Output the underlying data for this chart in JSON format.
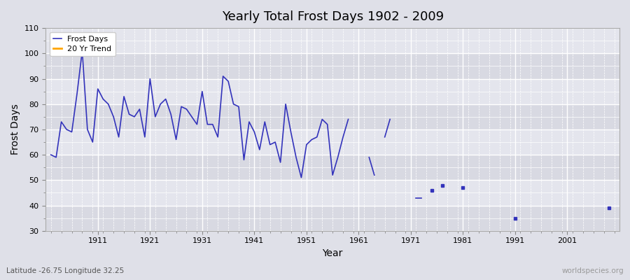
{
  "title": "Yearly Total Frost Days 1902 - 2009",
  "xlabel": "Year",
  "ylabel": "Frost Days",
  "subtitle": "Latitude -26.75 Longitude 32.25",
  "watermark": "worldspecies.org",
  "line_color": "#3333bb",
  "trend_color": "#FFA500",
  "bg_color": "#dfe0e8",
  "ylim": [
    30,
    110
  ],
  "yticks": [
    30,
    40,
    50,
    60,
    70,
    80,
    90,
    100,
    110
  ],
  "xlim": [
    1901,
    2011
  ],
  "xticks": [
    1911,
    1921,
    1931,
    1941,
    1951,
    1961,
    1971,
    1981,
    1991,
    2001
  ],
  "legend_labels": [
    "Frost Days",
    "20 Yr Trend"
  ],
  "years": [
    1902,
    1903,
    1904,
    1905,
    1906,
    1907,
    1908,
    1909,
    1910,
    1911,
    1912,
    1913,
    1914,
    1915,
    1916,
    1917,
    1918,
    1919,
    1920,
    1921,
    1922,
    1923,
    1924,
    1925,
    1926,
    1927,
    1928,
    1929,
    1930,
    1931,
    1932,
    1933,
    1934,
    1935,
    1936,
    1937,
    1938,
    1939,
    1940,
    1941,
    1942,
    1943,
    1944,
    1945,
    1946,
    1947,
    1948,
    1949,
    1950,
    1951,
    1952,
    1953,
    1954,
    1955,
    1956,
    1957,
    1958,
    1959,
    1963,
    1964,
    1966,
    1967,
    1972,
    1973,
    1975,
    1977,
    1981,
    1991,
    2009
  ],
  "frost_days": [
    60,
    59,
    73,
    70,
    69,
    84,
    101,
    70,
    65,
    86,
    82,
    80,
    75,
    67,
    83,
    76,
    75,
    78,
    67,
    90,
    75,
    80,
    82,
    76,
    66,
    79,
    78,
    75,
    72,
    85,
    72,
    72,
    67,
    91,
    89,
    80,
    79,
    58,
    73,
    69,
    62,
    73,
    64,
    65,
    57,
    80,
    69,
    59,
    51,
    64,
    66,
    67,
    74,
    72,
    52,
    59,
    67,
    74,
    59,
    52,
    67,
    74,
    43,
    43,
    46,
    48,
    47,
    35,
    39
  ]
}
